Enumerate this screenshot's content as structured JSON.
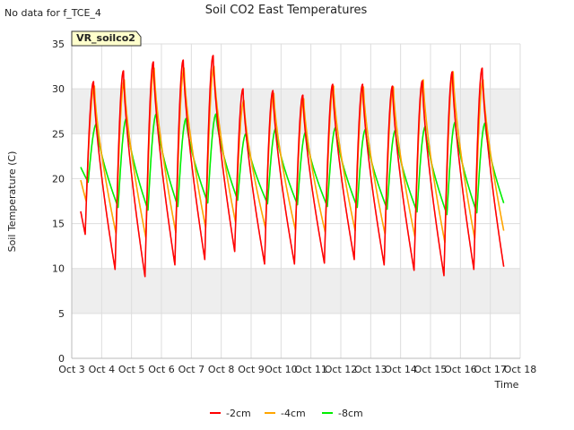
{
  "header": {
    "no_data_note": "No data for f_TCE_4",
    "title": "Soil CO2 East Temperatures",
    "station_label": "VR_soilco2"
  },
  "axes": {
    "xlabel": "Time",
    "ylabel": "Soil Temperature (C)"
  },
  "colors": {
    "band": "#eeeeee",
    "grid": "#dddddd",
    "tag_fill": "#ffffcc",
    "tag_text": "#990000"
  },
  "chart_data": {
    "type": "line",
    "title": "Soil CO2 East Temperatures",
    "xlabel": "Time",
    "ylabel": "Soil Temperature (C)",
    "xlim": [
      "Oct 3",
      "Oct 18"
    ],
    "ylim": [
      0,
      35
    ],
    "x_ticks": [
      "Oct 3",
      "Oct 4",
      "Oct 5",
      "Oct 6",
      "Oct 7",
      "Oct 8",
      "Oct 9",
      "Oct 10",
      "Oct 11",
      "Oct 12",
      "Oct 13",
      "Oct 14",
      "Oct 15",
      "Oct 16",
      "Oct 17",
      "Oct 18"
    ],
    "y_ticks": [
      0,
      5,
      10,
      15,
      20,
      25,
      30,
      35
    ],
    "grid": true,
    "legend_position": "bottom",
    "series": [
      {
        "name": "-2cm",
        "color": "#ff0000",
        "daily_min": [
          13.8,
          9.9,
          9.1,
          10.4,
          11.0,
          11.9,
          10.5,
          10.5,
          10.6,
          11.0,
          10.4,
          9.8,
          9.2,
          9.9,
          10.2,
          12.5
        ],
        "daily_max": [
          30.8,
          32.0,
          33.0,
          33.2,
          33.7,
          30.0,
          29.8,
          29.3,
          30.5,
          30.5,
          30.3,
          30.9,
          31.9,
          32.3
        ]
      },
      {
        "name": "-4cm",
        "color": "#ffa500",
        "daily_min": [
          17.5,
          13.9,
          13.4,
          14.0,
          14.5,
          15.1,
          14.5,
          14.3,
          14.0,
          14.2,
          13.8,
          13.5,
          12.9,
          13.3,
          13.7,
          16.3
        ],
        "daily_max": [
          30.3,
          31.0,
          32.3,
          32.3,
          32.5,
          28.7,
          29.5,
          28.9,
          30.3,
          30.2,
          30.2,
          31.0,
          31.9,
          31.0
        ]
      },
      {
        "name": "-8cm",
        "color": "#00ee00",
        "daily_min": [
          19.6,
          16.8,
          16.5,
          16.9,
          17.3,
          17.6,
          17.2,
          17.1,
          16.9,
          16.8,
          16.6,
          16.3,
          16.0,
          16.2,
          16.3,
          18.5
        ],
        "daily_max": [
          26.1,
          26.7,
          27.2,
          26.7,
          27.2,
          25.0,
          25.6,
          25.2,
          25.7,
          25.5,
          25.4,
          25.8,
          26.3,
          26.2
        ]
      }
    ]
  }
}
